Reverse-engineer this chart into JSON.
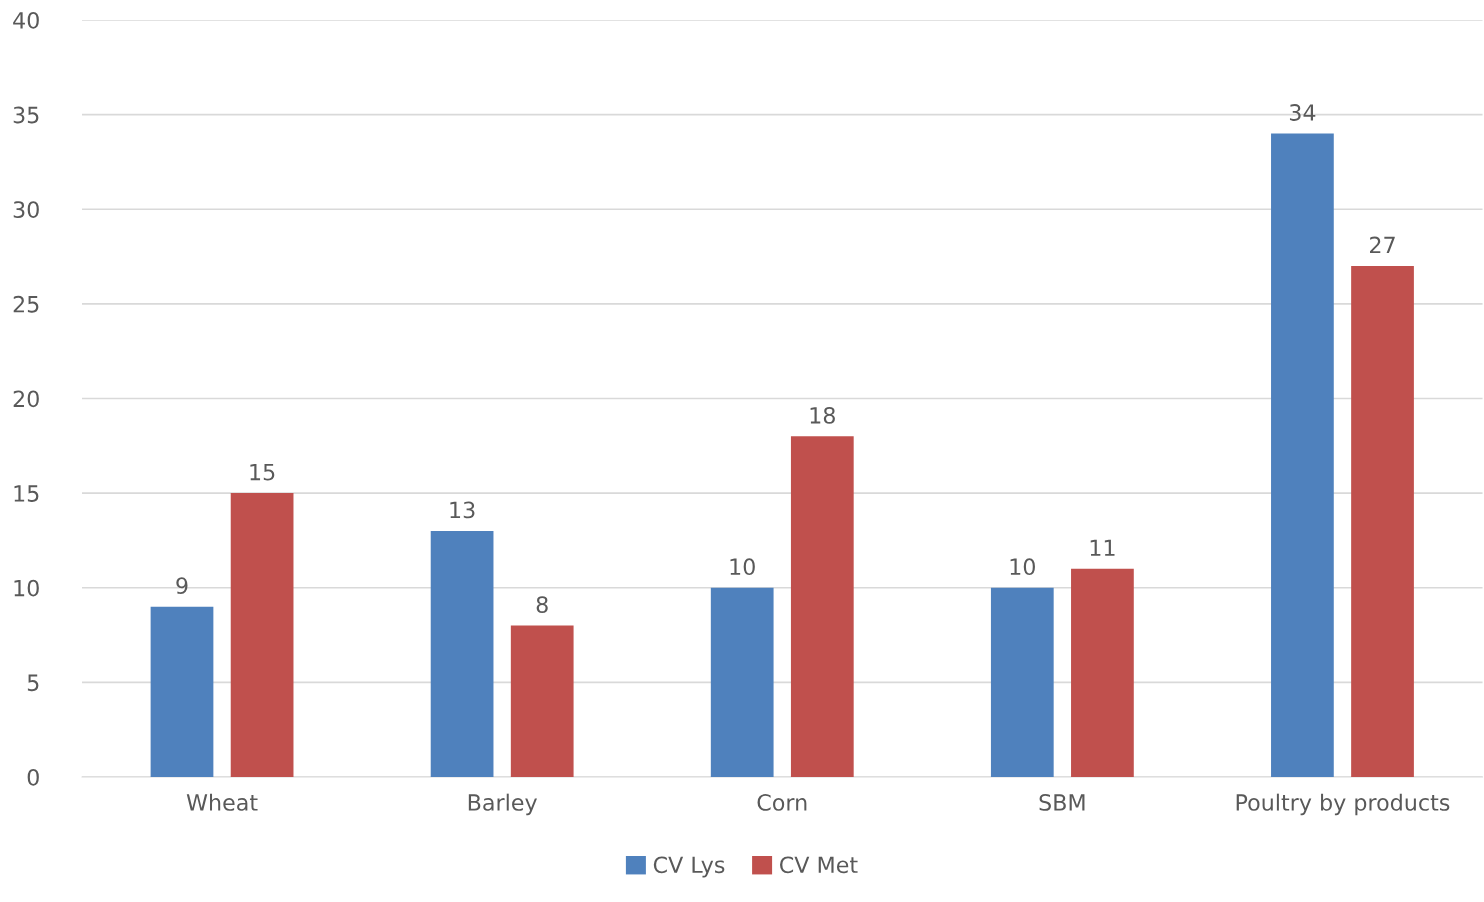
{
  "chart_data": {
    "type": "bar",
    "categories": [
      "Wheat",
      "Barley",
      "Corn",
      "SBM",
      "Poultry by products"
    ],
    "series": [
      {
        "name": "CV Lys",
        "color": "#4f81bd",
        "values": [
          9,
          13,
          10,
          10,
          34
        ]
      },
      {
        "name": "CV Met",
        "color": "#c0504d",
        "values": [
          15,
          8,
          18,
          11,
          27
        ]
      }
    ],
    "ylim": [
      0,
      40
    ],
    "yticks": [
      0,
      5,
      10,
      15,
      20,
      25,
      30,
      35,
      40
    ],
    "grid": "y",
    "legend": "bottom",
    "data_labels": true
  }
}
